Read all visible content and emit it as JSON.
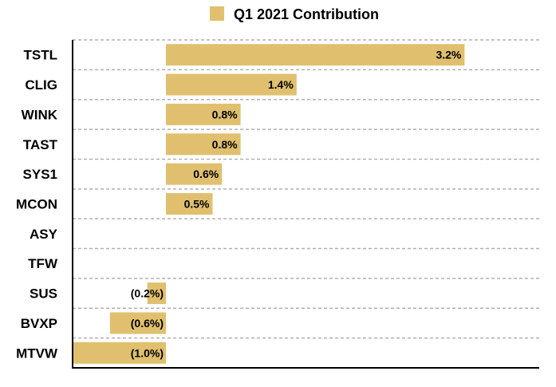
{
  "chart_data": {
    "type": "bar",
    "orientation": "horizontal",
    "categories": [
      "TSTL",
      "CLIG",
      "WINK",
      "TAST",
      "SYS1",
      "MCON",
      "ASY",
      "TFW",
      "SUS",
      "BVXP",
      "MTVW"
    ],
    "series": [
      {
        "name": "Q1 2021 Contribution",
        "values": [
          3.2,
          1.4,
          0.8,
          0.8,
          0.6,
          0.5,
          0,
          0,
          -0.2,
          -0.6,
          -1.0
        ],
        "labels": [
          "3.2%",
          "1.4%",
          "0.8%",
          "0.8%",
          "0.6%",
          "0.5%",
          "",
          "",
          "(0.2%)",
          "(0.6%)",
          "(1.0%)"
        ],
        "color": "#e0c06e"
      }
    ],
    "xlim": [
      -1.0,
      4.0
    ],
    "grid": true,
    "legend": "top-center"
  }
}
